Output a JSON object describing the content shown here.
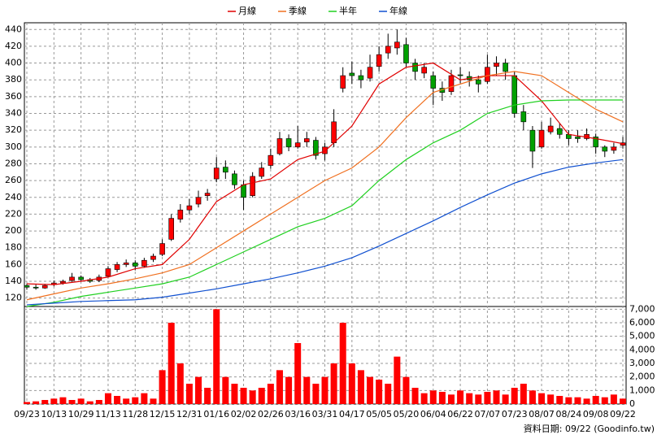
{
  "chart_data": {
    "type": "candlestick",
    "x": [
      "09/23",
      null,
      null,
      "10/13",
      null,
      null,
      "10/29",
      null,
      null,
      "11/13",
      null,
      null,
      "11/28",
      null,
      null,
      "12/15",
      null,
      null,
      "12/31",
      null,
      null,
      "01/16",
      null,
      null,
      "02/02",
      null,
      null,
      "02/26",
      null,
      null,
      "03/16",
      null,
      null,
      "03/31",
      null,
      null,
      "04/17",
      null,
      null,
      "05/05",
      null,
      null,
      "05/20",
      null,
      null,
      "06/04",
      null,
      null,
      "06/22",
      null,
      null,
      "07/07",
      null,
      null,
      "07/23",
      null,
      null,
      "08/07",
      null,
      null,
      "08/24",
      null,
      null,
      "09/08",
      null,
      null,
      "09/22"
    ],
    "open": [
      135,
      133,
      132,
      136,
      138,
      141,
      145,
      142,
      141,
      146,
      154,
      160,
      162,
      158,
      166,
      172,
      190,
      214,
      225,
      232,
      242,
      262,
      276,
      268,
      255,
      242,
      265,
      278,
      292,
      310,
      300,
      306,
      308,
      292,
      305,
      370,
      388,
      385,
      382,
      396,
      412,
      418,
      422,
      400,
      388,
      385,
      370,
      366,
      386,
      384,
      380,
      378,
      396,
      400,
      385,
      342,
      320,
      300,
      318,
      322,
      315,
      312,
      310,
      312,
      300,
      296,
      302
    ],
    "high": [
      137,
      136,
      137,
      141,
      142,
      150,
      147,
      144,
      148,
      158,
      163,
      166,
      165,
      168,
      173,
      190,
      220,
      232,
      238,
      248,
      250,
      288,
      284,
      272,
      260,
      270,
      282,
      298,
      318,
      315,
      325,
      318,
      312,
      305,
      345,
      395,
      402,
      392,
      410,
      420,
      435,
      440,
      430,
      405,
      400,
      390,
      378,
      392,
      395,
      390,
      385,
      410,
      408,
      405,
      390,
      350,
      325,
      330,
      335,
      328,
      320,
      320,
      322,
      316,
      302,
      305,
      312
    ],
    "low": [
      130,
      130,
      131,
      134,
      136,
      139,
      140,
      138,
      139,
      145,
      151,
      157,
      153,
      156,
      163,
      170,
      188,
      210,
      220,
      228,
      236,
      258,
      262,
      250,
      225,
      240,
      262,
      274,
      290,
      295,
      298,
      300,
      285,
      284,
      300,
      365,
      375,
      370,
      378,
      390,
      405,
      410,
      395,
      380,
      382,
      350,
      355,
      362,
      376,
      372,
      365,
      375,
      385,
      380,
      335,
      320,
      275,
      298,
      315,
      310,
      302,
      305,
      308,
      292,
      288,
      292,
      298
    ],
    "close": [
      133,
      132,
      135,
      138,
      140,
      145,
      142,
      140,
      145,
      155,
      160,
      162,
      158,
      165,
      170,
      185,
      215,
      225,
      230,
      240,
      245,
      275,
      270,
      255,
      240,
      265,
      275,
      290,
      310,
      300,
      305,
      310,
      290,
      300,
      330,
      385,
      385,
      380,
      395,
      410,
      420,
      425,
      400,
      390,
      395,
      370,
      365,
      385,
      385,
      380,
      375,
      395,
      400,
      390,
      340,
      330,
      295,
      320,
      325,
      315,
      310,
      310,
      315,
      300,
      295,
      300,
      305
    ],
    "up_color": "#ff0000",
    "down_color": "#00a000",
    "ylim": [
      110,
      448
    ],
    "yticks": [
      120,
      140,
      160,
      180,
      200,
      220,
      240,
      260,
      280,
      300,
      320,
      340,
      360,
      380,
      400,
      420,
      440
    ],
    "grid": true,
    "legend": "top",
    "series": [
      {
        "name": "月線",
        "color": "#e00000",
        "x": [
          0,
          3,
          6,
          9,
          12,
          15,
          18,
          21,
          24,
          27,
          30,
          33,
          36,
          39,
          42,
          45,
          48,
          51,
          54,
          57,
          60,
          63,
          66
        ],
        "values": [
          137,
          136,
          140,
          145,
          155,
          160,
          190,
          235,
          255,
          262,
          285,
          295,
          325,
          375,
          395,
          400,
          380,
          385,
          385,
          355,
          315,
          310,
          304
        ]
      },
      {
        "name": "季線",
        "color": "#f07020",
        "x": [
          0,
          3,
          6,
          9,
          12,
          15,
          18,
          21,
          24,
          27,
          30,
          33,
          36,
          39,
          42,
          45,
          48,
          51,
          54,
          57,
          60,
          63,
          66
        ],
        "values": [
          118,
          125,
          132,
          137,
          143,
          150,
          160,
          180,
          200,
          220,
          240,
          260,
          275,
          300,
          335,
          365,
          375,
          385,
          390,
          385,
          365,
          345,
          330
        ]
      },
      {
        "name": "半年",
        "color": "#20d020",
        "x": [
          0,
          3,
          6,
          9,
          12,
          15,
          18,
          21,
          24,
          27,
          30,
          33,
          36,
          39,
          42,
          45,
          48,
          51,
          54,
          57,
          60,
          63,
          66
        ],
        "values": [
          110,
          115,
          122,
          127,
          132,
          137,
          145,
          160,
          175,
          190,
          205,
          215,
          230,
          260,
          285,
          305,
          320,
          340,
          350,
          355,
          356,
          356,
          356
        ]
      },
      {
        "name": "年線",
        "color": "#1050d0",
        "x": [
          0,
          3,
          6,
          9,
          12,
          15,
          18,
          21,
          24,
          27,
          30,
          33,
          36,
          39,
          42,
          45,
          48,
          51,
          54,
          57,
          60,
          63,
          66
        ],
        "values": [
          112,
          114,
          116,
          117,
          118,
          121,
          126,
          131,
          137,
          143,
          150,
          158,
          168,
          182,
          197,
          212,
          228,
          243,
          257,
          268,
          276,
          281,
          285
        ]
      }
    ],
    "volume": {
      "color": "#ff0000",
      "ylim": [
        0,
        7200
      ],
      "yticks": [
        0,
        {
          "value": 1000,
          "label": "1,000"
        },
        {
          "value": 2000,
          "label": "2,000"
        },
        {
          "value": 3000,
          "label": "3,000"
        },
        {
          "value": 4000,
          "label": "4,000"
        },
        {
          "value": 5000,
          "label": "5,000"
        },
        {
          "value": 6000,
          "label": "6,000"
        },
        {
          "value": 7000,
          "label": "7,000"
        }
      ],
      "values": [
        150,
        200,
        300,
        400,
        500,
        300,
        400,
        200,
        300,
        800,
        600,
        400,
        500,
        800,
        400,
        2500,
        6000,
        3000,
        1500,
        2000,
        1200,
        7000,
        2000,
        1500,
        1200,
        1000,
        1200,
        1500,
        2500,
        2000,
        4500,
        2000,
        1500,
        2000,
        3000,
        6000,
        3000,
        2500,
        2000,
        1800,
        1500,
        3500,
        2000,
        1200,
        800,
        1000,
        900,
        700,
        1000,
        800,
        700,
        900,
        1000,
        700,
        1200,
        1500,
        1000,
        800,
        700,
        600,
        500,
        500,
        400,
        600,
        500,
        700,
        400
      ]
    },
    "footer": "資料日期: 09/22 (Goodinfo.tw)"
  }
}
